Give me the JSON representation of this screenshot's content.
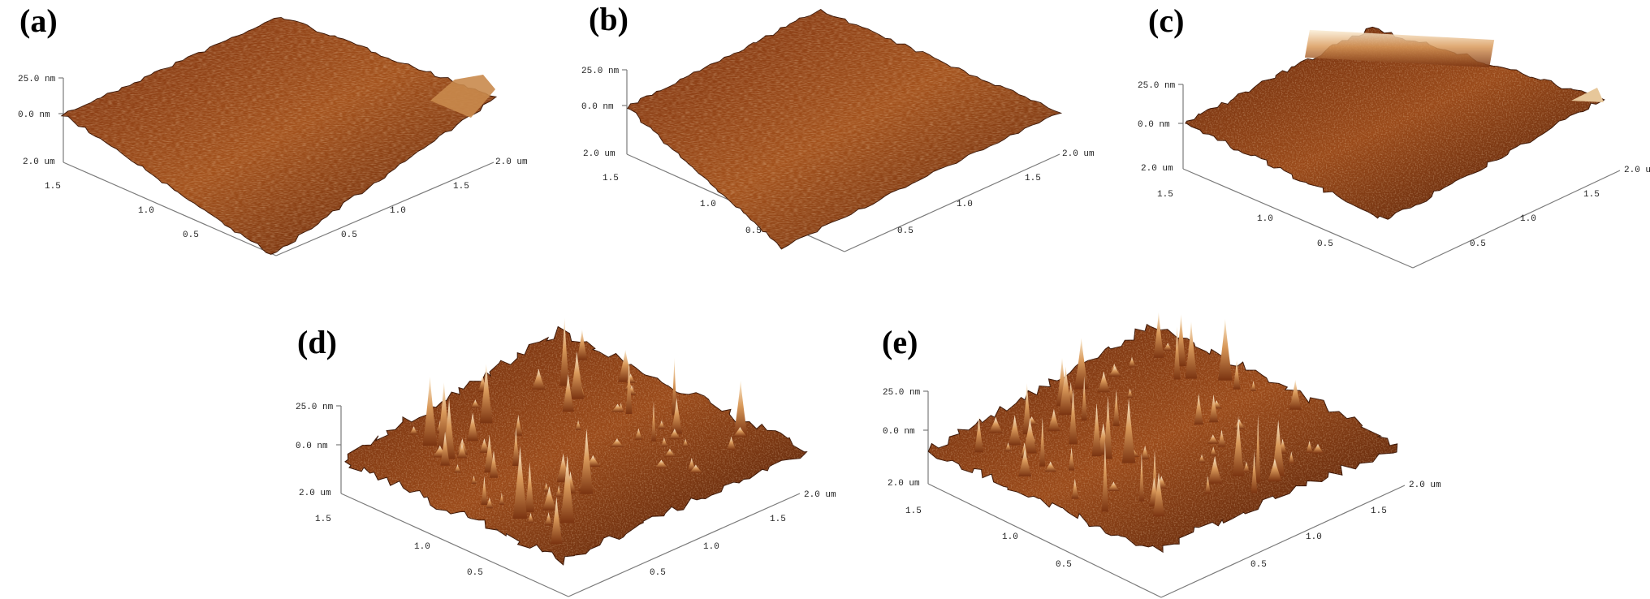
{
  "figure": {
    "panels": [
      {
        "label": "(a)",
        "z_top": "25.0 nm",
        "z_zero": "0.0 nm",
        "left_axis": [
          "2.0 um",
          "1.5",
          "1.0",
          "0.5"
        ],
        "right_axis": [
          "2.0 um",
          "1.5",
          "1.0",
          "0.5"
        ],
        "roughness": "low"
      },
      {
        "label": "(b)",
        "z_top": "25.0 nm",
        "z_zero": "0.0 nm",
        "left_axis": [
          "2.0 um",
          "1.5",
          "1.0",
          "0.5"
        ],
        "right_axis": [
          "2.0 um",
          "1.5",
          "1.0",
          "0.5"
        ],
        "roughness": "low"
      },
      {
        "label": "(c)",
        "z_top": "25.0 nm",
        "z_zero": "0.0 nm",
        "left_axis": [
          "2.0 um",
          "1.5",
          "1.0",
          "0.5"
        ],
        "right_axis": [
          "2.0 um",
          "1.5",
          "1.0",
          "0.5"
        ],
        "roughness": "medium"
      },
      {
        "label": "(d)",
        "z_top": "25.0 nm",
        "z_zero": "0.0 nm",
        "left_axis": [
          "2.0 um",
          "1.5",
          "1.0",
          "0.5"
        ],
        "right_axis": [
          "2.0 um",
          "1.5",
          "1.0",
          "0.5"
        ],
        "roughness": "high"
      },
      {
        "label": "(e)",
        "z_top": "25.0 nm",
        "z_zero": "0.0 nm",
        "left_axis": [
          "2.0 um",
          "1.5",
          "1.0",
          "0.5"
        ],
        "right_axis": [
          "2.0 um",
          "1.5",
          "1.0",
          "0.5"
        ],
        "roughness": "high"
      }
    ],
    "colors": {
      "surface_dark": "#3a1505",
      "surface_mid": "#8b3d12",
      "surface_light": "#c77a35",
      "peak_highlight": "#f3dfc0",
      "axis": "#7a7a7a"
    }
  }
}
